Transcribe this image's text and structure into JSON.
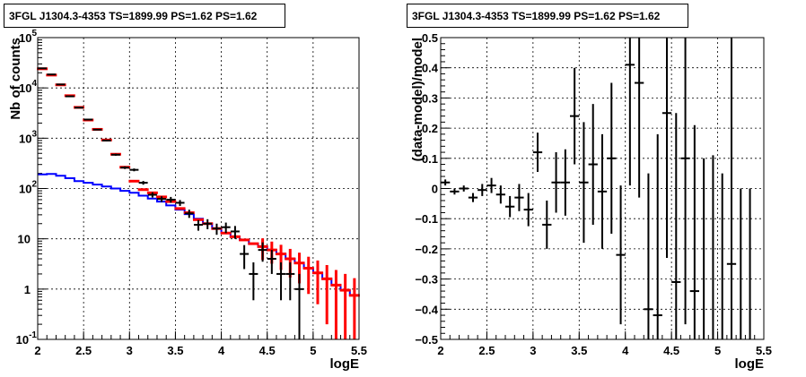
{
  "chart_data": [
    {
      "type": "line",
      "title": "3FGL J1304.3-4353 TS=1899.99 PS=1.62 PS=1.62",
      "xlabel": "logE",
      "ylabel": "Nb of counts",
      "xlim": [
        2,
        5.5
      ],
      "ylim": [
        0.1,
        100000
      ],
      "yscale": "log",
      "grid": true,
      "x_ticks": [
        "2",
        "2.5",
        "3",
        "3.5",
        "4",
        "4.5",
        "5",
        "5.5"
      ],
      "y_ticks": [
        {
          "value": 0.1,
          "base": "10",
          "exp": "-1"
        },
        {
          "value": 1,
          "base": "1",
          "exp": ""
        },
        {
          "value": 10,
          "base": "10",
          "exp": ""
        },
        {
          "value": 100,
          "base": "10",
          "exp": "2"
        },
        {
          "value": 1000,
          "base": "10",
          "exp": "3"
        },
        {
          "value": 10000,
          "base": "10",
          "exp": "4"
        },
        {
          "value": 100000,
          "base": "10",
          "exp": "5"
        }
      ],
      "series": [
        {
          "color": "#0000ff",
          "style": "step",
          "bin_width": 0.1,
          "x": [
            2.05,
            2.15,
            2.25,
            2.35,
            2.45,
            2.55,
            2.65,
            2.75,
            2.85,
            2.95,
            3.05,
            3.15,
            3.25,
            3.35,
            3.45,
            3.55,
            3.65,
            3.75,
            3.85,
            3.95,
            4.05,
            4.15,
            4.25,
            4.35,
            4.45,
            4.55,
            4.65,
            4.75,
            4.85,
            4.95,
            5.05,
            5.15,
            5.25,
            5.35,
            5.45
          ],
          "y": [
            190,
            195,
            180,
            160,
            140,
            130,
            120,
            110,
            100,
            90,
            82,
            72,
            63,
            55,
            46,
            38,
            31,
            25,
            20,
            16,
            13,
            11,
            9.5,
            8,
            7,
            6,
            5,
            4,
            3.3,
            2.6,
            2.1,
            1.6,
            1.2,
            0.95,
            0.75
          ]
        },
        {
          "color": "#ff0000",
          "style": "errorbar",
          "x": [
            2.05,
            2.15,
            2.25,
            2.35,
            2.45,
            2.55,
            2.65,
            2.75,
            2.85,
            2.95,
            3.05,
            3.15,
            3.25,
            3.35,
            3.45,
            3.55,
            3.65,
            3.75,
            3.85,
            3.95,
            4.05,
            4.15,
            4.25,
            4.35,
            4.45,
            4.55,
            4.65,
            4.75,
            4.85,
            4.95,
            5.05,
            5.15,
            5.25,
            5.35,
            5.45
          ],
          "y": [
            24000,
            18000,
            11500,
            7000,
            4100,
            2300,
            1500,
            920,
            480,
            265,
            140,
            95,
            82,
            68,
            55,
            40,
            33,
            24,
            20,
            16,
            13,
            11,
            9.5,
            8,
            7,
            6,
            5,
            4,
            3.3,
            2.6,
            2.1,
            1.6,
            1.2,
            0.95,
            0.75
          ],
          "err": [
            0,
            0,
            0,
            0,
            0,
            0,
            0,
            0,
            0,
            0,
            0,
            0,
            0,
            0,
            0,
            0,
            0,
            0,
            0,
            0,
            0,
            0,
            0,
            0,
            3.2,
            2.8,
            2.6,
            2.3,
            2.0,
            1.8,
            1.6,
            1.4,
            1.2,
            1.05,
            0.9
          ]
        },
        {
          "color": "#000000",
          "style": "errorbar",
          "x": [
            2.05,
            2.15,
            2.25,
            2.35,
            2.45,
            2.55,
            2.65,
            2.75,
            2.85,
            2.95,
            3.05,
            3.15,
            3.25,
            3.35,
            3.45,
            3.55,
            3.65,
            3.75,
            3.85,
            3.95,
            4.05,
            4.15,
            4.25,
            4.35,
            4.45,
            4.55,
            4.65,
            4.75,
            4.85,
            4.95,
            5.05,
            5.15,
            5.25,
            5.35,
            5.45
          ],
          "y": [
            24500,
            18500,
            11700,
            6800,
            4050,
            2350,
            1480,
            900,
            470,
            260,
            235,
            130,
            75,
            62,
            60,
            52,
            32,
            19,
            20,
            16,
            17,
            14,
            5,
            2,
            6,
            4,
            2,
            2,
            1,
            2,
            2,
            1,
            1,
            1,
            1
          ],
          "err": [
            150,
            130,
            110,
            85,
            65,
            50,
            40,
            30,
            22,
            16,
            15,
            11,
            9,
            8,
            8,
            7,
            6,
            4.5,
            4.5,
            4,
            4,
            4,
            2.5,
            1.4,
            2.5,
            2,
            1.4,
            1.4,
            1,
            1.4,
            0,
            0,
            0,
            0,
            0
          ],
          "show_point": [
            true,
            true,
            true,
            true,
            true,
            true,
            true,
            true,
            true,
            true,
            true,
            true,
            true,
            true,
            true,
            true,
            true,
            true,
            true,
            true,
            true,
            true,
            true,
            true,
            true,
            true,
            true,
            true,
            true,
            false,
            false,
            false,
            false,
            false,
            false
          ]
        }
      ]
    },
    {
      "type": "scatter",
      "title": "3FGL J1304.3-4353 TS=1899.99 PS=1.62 PS=1.62",
      "xlabel": "logE",
      "ylabel": "(data-model)/model",
      "xlim": [
        2,
        5.5
      ],
      "ylim": [
        -0.5,
        0.5
      ],
      "grid": true,
      "x_ticks": [
        "2",
        "2.5",
        "3",
        "3.5",
        "4",
        "4.5",
        "5",
        "5.5"
      ],
      "y_ticks": [
        "−0.5",
        "−0.4",
        "−0.3",
        "−0.2",
        "−0.1",
        "0",
        "0.1",
        "0.2",
        "0.3",
        "0.4",
        "0.5"
      ],
      "series": [
        {
          "color": "#000000",
          "style": "errorbar",
          "bin_width": 0.1,
          "x": [
            2.05,
            2.15,
            2.25,
            2.35,
            2.45,
            2.55,
            2.65,
            2.75,
            2.85,
            2.95,
            3.05,
            3.15,
            3.25,
            3.35,
            3.45,
            3.55,
            3.65,
            3.75,
            3.85,
            3.95,
            4.05,
            4.15,
            4.25,
            4.35,
            4.45,
            4.55,
            4.65,
            4.75,
            4.85,
            4.95,
            5.05,
            5.15,
            5.25,
            5.35
          ],
          "y": [
            0.02,
            -0.01,
            0,
            -0.03,
            -0.005,
            0.01,
            -0.02,
            -0.06,
            -0.03,
            -0.07,
            0.12,
            -0.12,
            0.02,
            0.02,
            0.24,
            0.02,
            0.08,
            -0.01,
            0.1,
            -0.22,
            0.41,
            0.35,
            -0.4,
            -0.42,
            0.25,
            -0.31,
            0.1,
            -0.34,
            -0.6,
            -0.64,
            -0.7,
            -0.25,
            -0.8,
            -0.8
          ],
          "err": [
            0.01,
            0.01,
            0.01,
            0.015,
            0.02,
            0.025,
            0.03,
            0.035,
            0.045,
            0.055,
            0.065,
            0.08,
            0.1,
            0.11,
            0.16,
            0.2,
            0.2,
            0.19,
            0.25,
            0.23,
            0.4,
            0.38,
            0.45,
            0.6,
            0.48,
            0.56,
            0.55,
            0.55,
            0.7,
            0.75,
            0.75,
            0.75,
            0.8,
            0.8
          ]
        }
      ]
    }
  ]
}
